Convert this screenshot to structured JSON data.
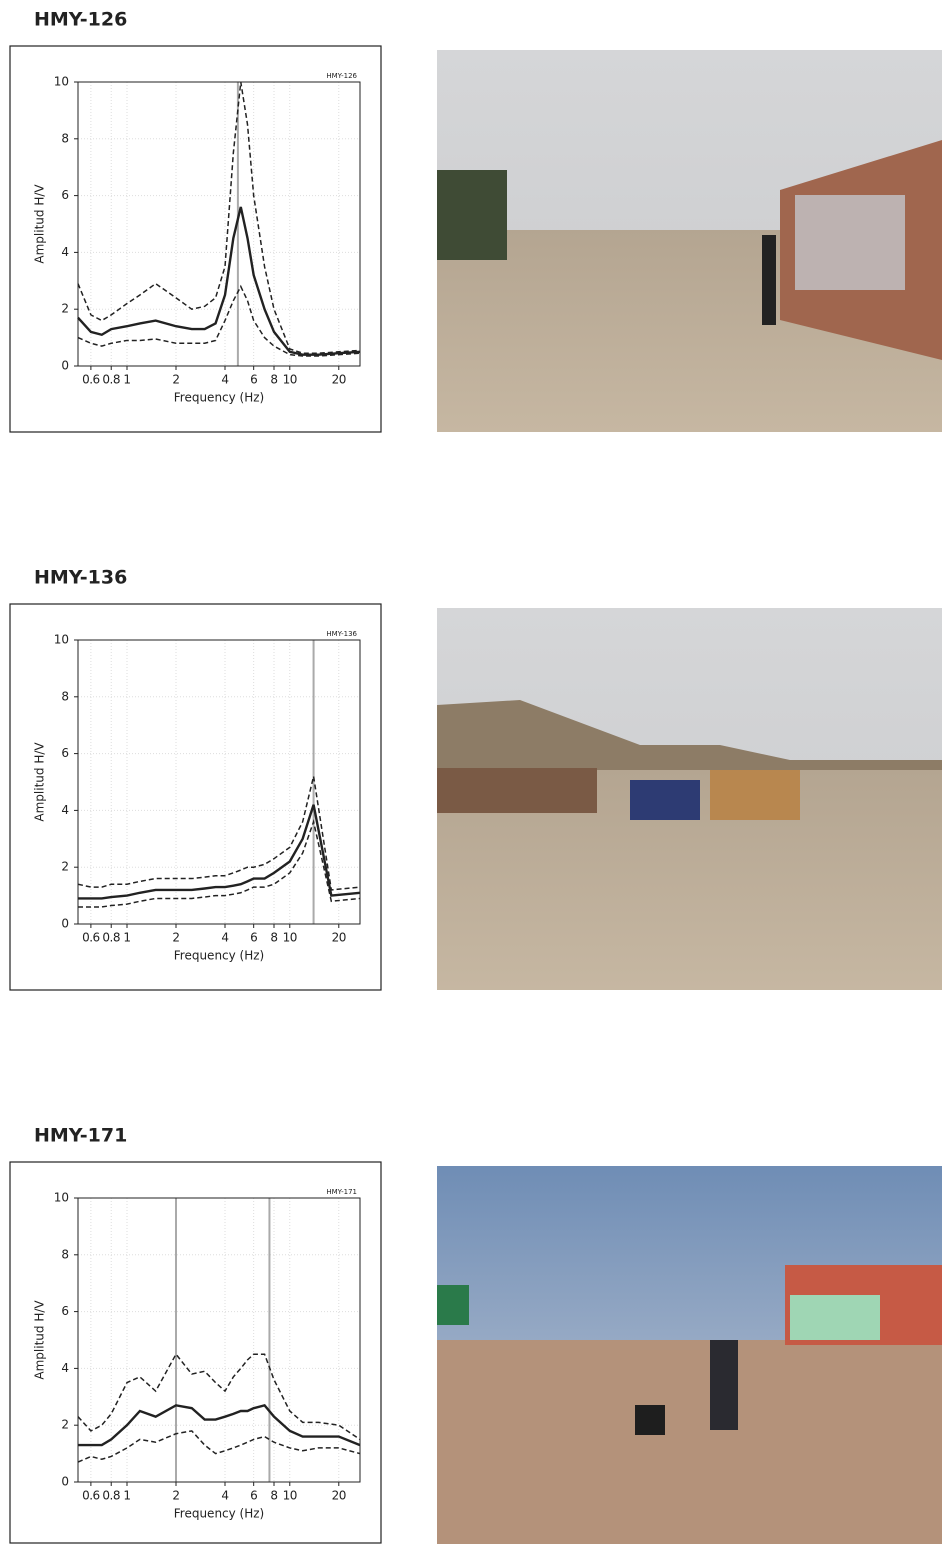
{
  "chart_data": [
    {
      "type": "line",
      "title": "HMY-126",
      "inset_label": "HMY-126",
      "xlabel": "Frequency (Hz)",
      "ylabel": "Amplitud  H/V",
      "xscale": "log",
      "grid": true,
      "xlim": [
        0.5,
        27
      ],
      "ylim": [
        0,
        10
      ],
      "xticks": [
        0.6,
        0.8,
        1,
        2,
        4,
        6,
        8,
        10,
        20
      ],
      "yticks": [
        0,
        2,
        4,
        6,
        8,
        10
      ],
      "vlines": [
        4.8
      ],
      "x": [
        0.5,
        0.6,
        0.7,
        0.8,
        1,
        1.2,
        1.5,
        2,
        2.5,
        3,
        3.5,
        4,
        4.5,
        5,
        5.5,
        6,
        7,
        8,
        10,
        12,
        15,
        20,
        27
      ],
      "series": [
        {
          "color": "#222222",
          "dashed": false,
          "values": [
            1.7,
            1.2,
            1.1,
            1.3,
            1.4,
            1.5,
            1.6,
            1.4,
            1.3,
            1.3,
            1.5,
            2.5,
            4.5,
            5.6,
            4.5,
            3.2,
            2.0,
            1.2,
            0.5,
            0.4,
            0.4,
            0.45,
            0.5
          ]
        },
        {
          "color": "#222222",
          "dashed": true,
          "values": [
            2.9,
            1.8,
            1.6,
            1.8,
            2.2,
            2.5,
            2.9,
            2.4,
            2.0,
            2.1,
            2.4,
            3.5,
            7.5,
            10,
            8.5,
            6.0,
            3.5,
            2.0,
            0.6,
            0.45,
            0.45,
            0.5,
            0.55
          ]
        },
        {
          "color": "#222222",
          "dashed": true,
          "values": [
            1.0,
            0.8,
            0.7,
            0.8,
            0.9,
            0.9,
            0.95,
            0.8,
            0.8,
            0.8,
            0.9,
            1.6,
            2.3,
            2.8,
            2.3,
            1.6,
            1.0,
            0.7,
            0.4,
            0.35,
            0.35,
            0.4,
            0.45
          ]
        }
      ]
    },
    {
      "type": "line",
      "title": "HMY-136",
      "inset_label": "HMY-136",
      "xlabel": "Frequency (Hz)",
      "ylabel": "Amplitud  H/V",
      "xscale": "log",
      "grid": true,
      "xlim": [
        0.5,
        27
      ],
      "ylim": [
        0,
        10
      ],
      "xticks": [
        0.6,
        0.8,
        1,
        2,
        4,
        6,
        8,
        10,
        20
      ],
      "yticks": [
        0,
        2,
        4,
        6,
        8,
        10
      ],
      "vlines": [
        14
      ],
      "x": [
        0.5,
        0.6,
        0.7,
        0.8,
        1,
        1.2,
        1.5,
        2,
        2.5,
        3,
        3.5,
        4,
        4.5,
        5,
        5.5,
        6,
        7,
        8,
        10,
        12,
        14,
        18,
        27
      ],
      "series": [
        {
          "color": "#222222",
          "dashed": false,
          "values": [
            0.9,
            0.9,
            0.9,
            0.95,
            1.0,
            1.1,
            1.2,
            1.2,
            1.2,
            1.25,
            1.3,
            1.3,
            1.35,
            1.4,
            1.5,
            1.6,
            1.6,
            1.8,
            2.2,
            3.0,
            4.2,
            1.0,
            1.1
          ]
        },
        {
          "color": "#222222",
          "dashed": true,
          "values": [
            1.4,
            1.3,
            1.3,
            1.4,
            1.4,
            1.5,
            1.6,
            1.6,
            1.6,
            1.65,
            1.7,
            1.7,
            1.8,
            1.9,
            2.0,
            2.0,
            2.1,
            2.3,
            2.7,
            3.6,
            5.2,
            1.2,
            1.3
          ]
        },
        {
          "color": "#222222",
          "dashed": true,
          "values": [
            0.6,
            0.6,
            0.6,
            0.65,
            0.7,
            0.8,
            0.9,
            0.9,
            0.9,
            0.95,
            1.0,
            1.0,
            1.05,
            1.1,
            1.2,
            1.3,
            1.3,
            1.4,
            1.8,
            2.5,
            3.6,
            0.8,
            0.9
          ]
        }
      ]
    },
    {
      "type": "line",
      "title": "HMY-171",
      "inset_label": "HMY-171",
      "xlabel": "Frequency (Hz)",
      "ylabel": "Amplitud  H/V",
      "xscale": "log",
      "grid": true,
      "xlim": [
        0.5,
        27
      ],
      "ylim": [
        0,
        10
      ],
      "xticks": [
        0.6,
        0.8,
        1,
        2,
        4,
        6,
        8,
        10,
        20
      ],
      "yticks": [
        0,
        2,
        4,
        6,
        8,
        10
      ],
      "vlines": [
        2,
        7.5
      ],
      "x": [
        0.5,
        0.6,
        0.7,
        0.8,
        1,
        1.2,
        1.5,
        2,
        2.5,
        3,
        3.5,
        4,
        4.5,
        5,
        5.5,
        6,
        7,
        8,
        10,
        12,
        15,
        20,
        27
      ],
      "series": [
        {
          "color": "#222222",
          "dashed": false,
          "values": [
            1.3,
            1.3,
            1.3,
            1.5,
            2.0,
            2.5,
            2.3,
            2.7,
            2.6,
            2.2,
            2.2,
            2.3,
            2.4,
            2.5,
            2.5,
            2.6,
            2.7,
            2.3,
            1.8,
            1.6,
            1.6,
            1.6,
            1.3
          ]
        },
        {
          "color": "#222222",
          "dashed": true,
          "values": [
            2.3,
            1.8,
            2.0,
            2.4,
            3.5,
            3.7,
            3.2,
            4.5,
            3.8,
            3.9,
            3.5,
            3.2,
            3.7,
            4.0,
            4.3,
            4.5,
            4.5,
            3.6,
            2.5,
            2.1,
            2.1,
            2.0,
            1.5
          ]
        },
        {
          "color": "#222222",
          "dashed": true,
          "values": [
            0.7,
            0.9,
            0.8,
            0.9,
            1.2,
            1.5,
            1.4,
            1.7,
            1.8,
            1.3,
            1.0,
            1.1,
            1.2,
            1.3,
            1.4,
            1.5,
            1.6,
            1.4,
            1.2,
            1.1,
            1.2,
            1.2,
            1.0
          ]
        }
      ]
    }
  ]
}
